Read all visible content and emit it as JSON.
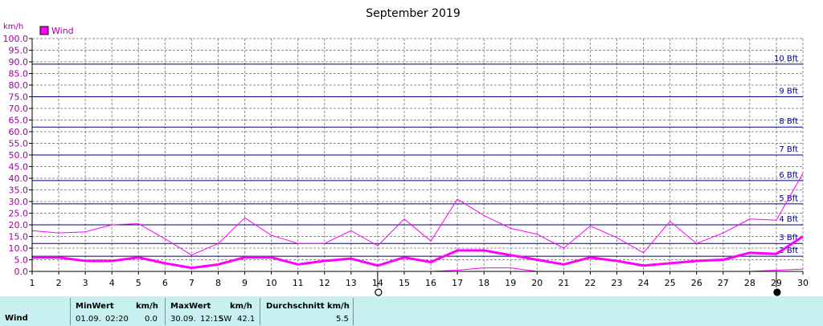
{
  "chart_data": {
    "type": "line",
    "title": "September 2019",
    "ylabel": "km/h",
    "ylim": [
      0,
      100
    ],
    "y_tick_step": 5,
    "x": [
      1,
      2,
      3,
      4,
      5,
      6,
      7,
      8,
      9,
      10,
      11,
      12,
      13,
      14,
      15,
      16,
      17,
      18,
      19,
      20,
      21,
      22,
      23,
      24,
      25,
      26,
      27,
      28,
      29,
      30
    ],
    "legend": {
      "entries": [
        "Wind"
      ],
      "placement": "top-left",
      "color": "#ff00ff"
    },
    "grid": true,
    "series": [
      {
        "name": "Wind",
        "role": "max",
        "values": [
          17.5,
          16.5,
          17,
          20,
          20.5,
          14,
          7,
          12,
          23,
          15.5,
          12,
          12,
          17.5,
          11,
          22.5,
          13,
          31,
          24,
          18.5,
          16,
          10,
          19.5,
          14.5,
          8,
          21.5,
          12,
          16.5,
          22.5,
          22,
          42.1
        ],
        "color": "#ff00ff",
        "width": 1
      },
      {
        "name": "Wind",
        "role": "average",
        "values": [
          6,
          6,
          4.5,
          4.5,
          6,
          3.5,
          1.5,
          3,
          6,
          6,
          3,
          4.5,
          5.5,
          2.5,
          6,
          4,
          9,
          9,
          7,
          5,
          3,
          6,
          4.5,
          2.5,
          3.5,
          4.5,
          5,
          8,
          7.5,
          15
        ],
        "color": "#ff00ff",
        "width": 3
      },
      {
        "name": "Wind",
        "role": "min",
        "values": [
          0,
          0,
          0,
          0,
          0,
          0,
          0,
          0,
          0,
          0,
          0,
          0,
          0,
          0,
          0,
          0,
          0.5,
          1.5,
          1.5,
          0,
          0,
          0,
          0,
          0,
          0,
          0,
          0,
          0,
          0.5,
          1
        ],
        "color": "#ff00ff",
        "width": 1
      }
    ],
    "beaufort": [
      {
        "label": "2 Bft",
        "value": 6.5
      },
      {
        "label": "3 Bft",
        "value": 12
      },
      {
        "label": "4 Bft",
        "value": 20
      },
      {
        "label": "5 Bft",
        "value": 29
      },
      {
        "label": "6 Bft",
        "value": 39
      },
      {
        "label": "7 Bft",
        "value": 50
      },
      {
        "label": "8 Bft",
        "value": 62
      },
      {
        "label": "9 Bft",
        "value": 75
      },
      {
        "label": "10 Bft",
        "value": 89
      }
    ],
    "moon_phases": [
      {
        "day": 14,
        "phase": "full-moon"
      },
      {
        "day": 29,
        "phase": "new-moon"
      }
    ]
  },
  "stats": {
    "row_label": "Wind",
    "min_header": "MinWert",
    "min_unit": "km/h",
    "max_header": "MaxWert",
    "max_unit": "km/h",
    "avg_header": "Durchschnitt km/h",
    "min_date": "01.09.",
    "min_time": "02:20",
    "min_value": "0.0",
    "max_date": "30.09.",
    "max_time": "12:15",
    "max_dir": "SW",
    "max_value": "42.1",
    "avg_value": "5.5"
  }
}
